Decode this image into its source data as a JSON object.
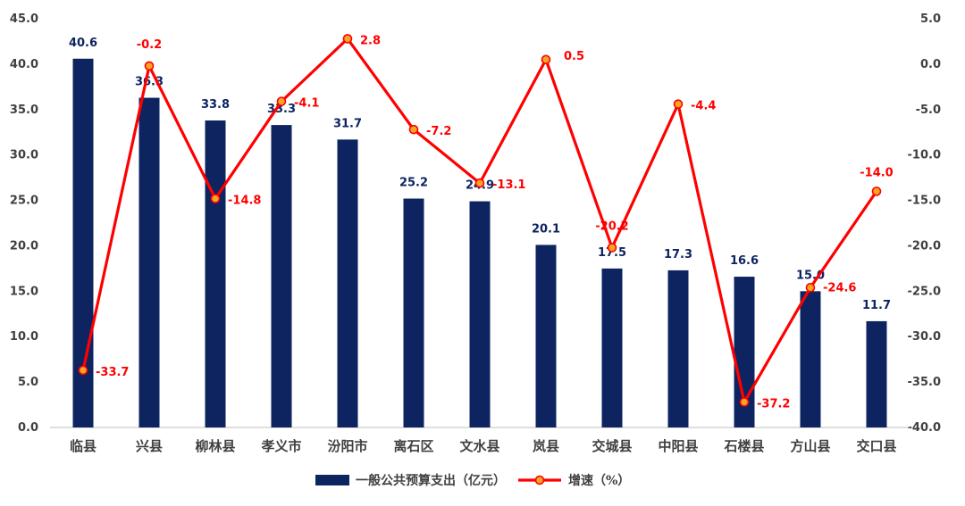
{
  "chart_data": {
    "type": "bar+line",
    "categories": [
      "临县",
      "兴县",
      "柳林县",
      "孝义市",
      "汾阳市",
      "离石区",
      "文水县",
      "岚县",
      "交城县",
      "中阳县",
      "石楼县",
      "方山县",
      "交口县"
    ],
    "series": [
      {
        "name": "一般公共预算支出（亿元）",
        "type": "bar",
        "axis": "left",
        "values": [
          40.6,
          36.3,
          33.8,
          33.3,
          31.7,
          25.2,
          24.9,
          20.1,
          17.5,
          17.3,
          16.6,
          15.0,
          11.7
        ],
        "labels": [
          "40.6",
          "36.3",
          "33.8",
          "33.3",
          "31.7",
          "25.2",
          "24.9",
          "20.1",
          "17.5",
          "17.3",
          "16.6",
          "15.0",
          "11.7"
        ]
      },
      {
        "name": "增速（%）",
        "type": "line",
        "axis": "right",
        "values": [
          -33.7,
          -0.2,
          -14.8,
          -4.1,
          2.8,
          -7.2,
          -13.1,
          0.5,
          -20.2,
          -4.4,
          -37.2,
          -24.6,
          -14.0
        ],
        "labels": [
          "-33.7",
          "-0.2",
          "-14.8",
          "-4.1",
          "2.8",
          "-7.2",
          "-13.1",
          "0.5",
          "-20.2",
          "-4.4",
          "-37.2",
          "-24.6",
          "-14.0"
        ]
      }
    ],
    "y_left": {
      "range": [
        0,
        45
      ],
      "ticks": [
        "0.0",
        "5.0",
        "10.0",
        "15.0",
        "20.0",
        "25.0",
        "30.0",
        "35.0",
        "40.0",
        "45.0"
      ]
    },
    "y_right": {
      "range": [
        -40,
        5
      ],
      "ticks": [
        "-40.0",
        "-35.0",
        "-30.0",
        "-25.0",
        "-20.0",
        "-15.0",
        "-10.0",
        "-5.0",
        "0.0",
        "5.0"
      ]
    },
    "grid": false,
    "legend_position": "bottom",
    "colors": {
      "bar": "#0d2460",
      "line": "#ff0000",
      "marker_fill": "#f5a623"
    }
  }
}
